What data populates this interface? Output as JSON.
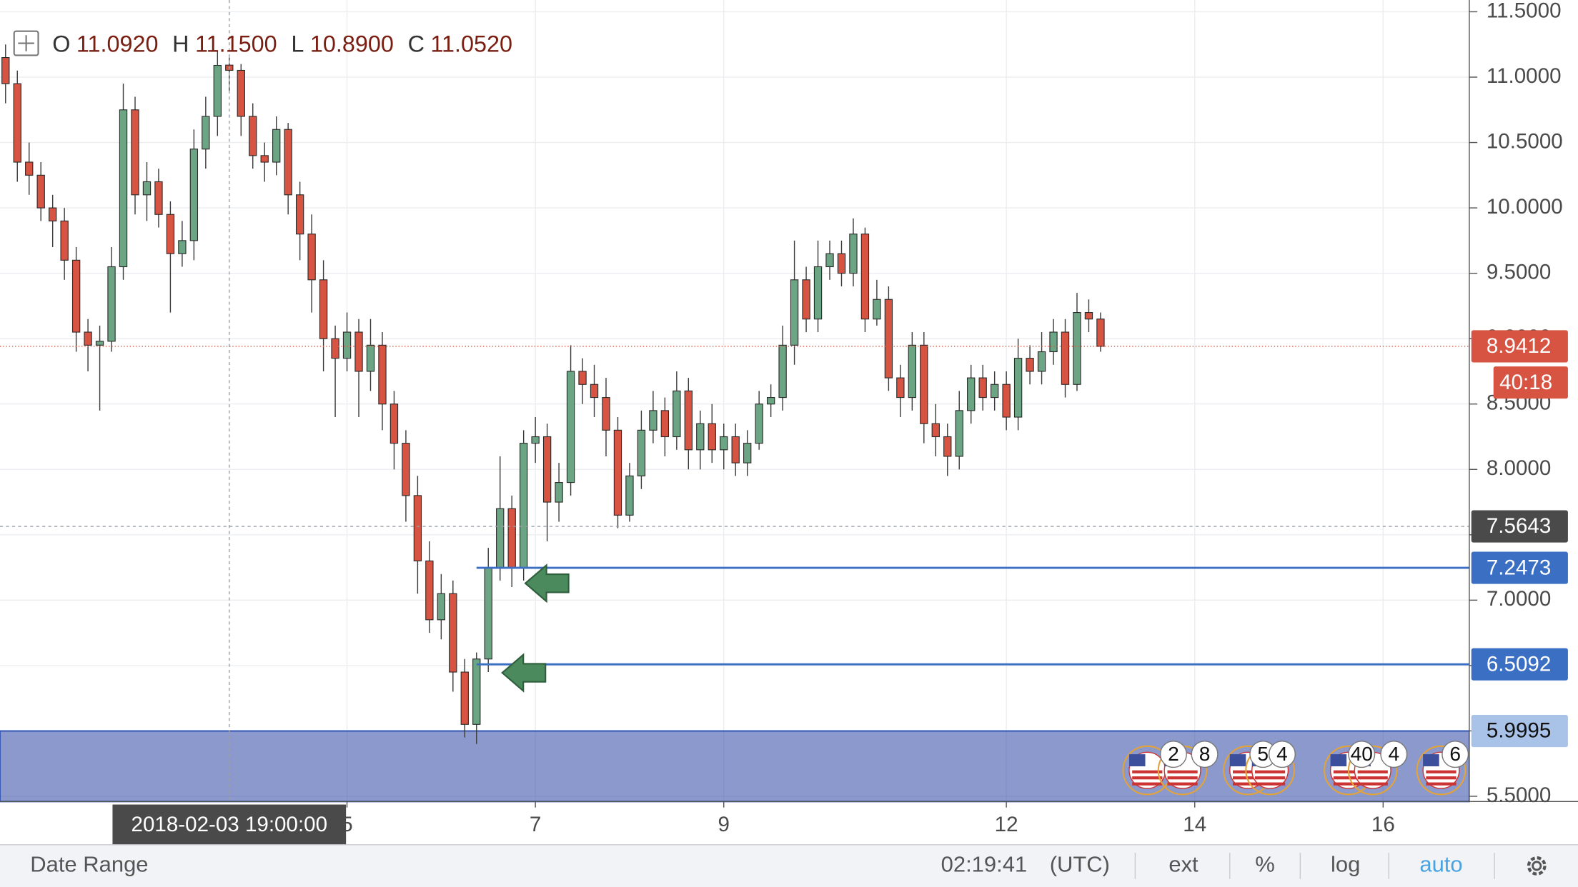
{
  "chart_data": {
    "type": "candlestick",
    "ohlc_legend": [
      {
        "label": "O",
        "value": "11.0920"
      },
      {
        "label": "H",
        "value": "11.1500"
      },
      {
        "label": "L",
        "value": "10.8900"
      },
      {
        "label": "C",
        "value": "11.0520"
      }
    ],
    "x": [
      1.375,
      1.5,
      1.625,
      1.75,
      1.875,
      2.0,
      2.125,
      2.25,
      2.375,
      2.5,
      2.625,
      2.75,
      2.875,
      3.0,
      3.125,
      3.25,
      3.375,
      3.5,
      3.625,
      3.75,
      3.875,
      4.0,
      4.125,
      4.25,
      4.375,
      4.5,
      4.625,
      4.75,
      4.875,
      5.0,
      5.125,
      5.25,
      5.375,
      5.5,
      5.625,
      5.75,
      5.875,
      6.0,
      6.125,
      6.25,
      6.375,
      6.5,
      6.625,
      6.75,
      6.875,
      7.0,
      7.125,
      7.25,
      7.375,
      7.5,
      7.625,
      7.75,
      7.875,
      8.0,
      8.125,
      8.25,
      8.375,
      8.5,
      8.625,
      8.75,
      8.875,
      9.0,
      9.125,
      9.25,
      9.375,
      9.5,
      9.625,
      9.75,
      9.875,
      10.0,
      10.125,
      10.25,
      10.375,
      10.5,
      10.625,
      10.75,
      10.875,
      11.0,
      11.125,
      11.25,
      11.375,
      11.5,
      11.625,
      11.75,
      11.875,
      12.0,
      12.125,
      12.25,
      12.375,
      12.5,
      12.625,
      12.75,
      12.875,
      13.0
    ],
    "open": [
      11.15,
      10.95,
      10.35,
      10.25,
      10.0,
      9.9,
      9.6,
      9.05,
      8.95,
      8.98,
      9.55,
      10.75,
      10.1,
      10.2,
      9.95,
      9.65,
      9.75,
      10.45,
      10.7,
      11.092,
      11.052,
      10.7,
      10.4,
      10.35,
      10.6,
      10.1,
      9.8,
      9.45,
      9.0,
      8.85,
      9.05,
      8.75,
      8.95,
      8.5,
      8.2,
      7.8,
      7.3,
      6.85,
      7.05,
      6.45,
      6.05,
      6.55,
      7.25,
      7.7,
      7.25,
      8.2,
      8.25,
      7.75,
      7.9,
      8.75,
      8.65,
      8.55,
      8.3,
      7.65,
      7.95,
      8.3,
      8.45,
      8.25,
      8.6,
      8.15,
      8.35,
      8.15,
      8.25,
      8.05,
      8.2,
      8.5,
      8.55,
      8.95,
      9.45,
      9.15,
      9.55,
      9.65,
      9.5,
      9.8,
      9.15,
      9.3,
      8.7,
      8.55,
      8.95,
      8.35,
      8.25,
      8.1,
      8.45,
      8.7,
      8.55,
      8.65,
      8.4,
      8.85,
      8.75,
      8.9,
      9.05,
      8.65,
      9.2,
      9.15
    ],
    "high": [
      11.25,
      11.05,
      10.5,
      10.35,
      10.1,
      10.0,
      9.7,
      9.15,
      9.1,
      9.7,
      10.95,
      10.85,
      10.35,
      10.3,
      10.05,
      9.9,
      10.6,
      10.85,
      11.2,
      11.15,
      11.1,
      10.8,
      10.5,
      10.7,
      10.65,
      10.2,
      9.95,
      9.6,
      9.1,
      9.2,
      9.15,
      9.15,
      9.05,
      8.6,
      8.3,
      7.95,
      7.45,
      7.2,
      7.15,
      6.55,
      6.6,
      7.4,
      8.1,
      7.8,
      8.3,
      8.4,
      8.35,
      8.05,
      8.95,
      8.85,
      8.8,
      8.7,
      8.4,
      8.05,
      8.45,
      8.6,
      8.55,
      8.75,
      8.7,
      8.45,
      8.5,
      8.35,
      8.35,
      8.3,
      8.6,
      8.65,
      9.1,
      9.75,
      9.55,
      9.75,
      9.75,
      9.75,
      9.92,
      9.85,
      9.45,
      9.4,
      8.8,
      9.05,
      9.05,
      8.5,
      8.35,
      8.6,
      8.8,
      8.8,
      8.75,
      8.75,
      9.0,
      8.95,
      9.05,
      9.15,
      9.15,
      9.35,
      9.3,
      9.2
    ],
    "low": [
      10.8,
      10.2,
      10.1,
      9.9,
      9.7,
      9.45,
      8.9,
      8.75,
      8.45,
      8.9,
      9.45,
      9.95,
      9.9,
      9.85,
      9.2,
      9.55,
      9.6,
      10.3,
      10.55,
      10.89,
      10.55,
      10.3,
      10.2,
      10.25,
      9.95,
      9.6,
      9.2,
      8.75,
      8.4,
      8.75,
      8.4,
      8.6,
      8.3,
      8.0,
      7.6,
      7.05,
      6.75,
      6.7,
      6.3,
      5.95,
      5.9,
      6.45,
      7.15,
      7.1,
      7.15,
      8.05,
      7.45,
      7.6,
      7.8,
      8.5,
      8.4,
      8.1,
      7.55,
      7.6,
      7.85,
      8.2,
      8.1,
      8.15,
      8.0,
      8.0,
      8.05,
      8.0,
      7.95,
      7.95,
      8.15,
      8.4,
      8.45,
      8.8,
      9.05,
      9.05,
      9.45,
      9.4,
      9.4,
      9.05,
      9.1,
      8.6,
      8.4,
      8.45,
      8.2,
      8.1,
      7.95,
      8.0,
      8.35,
      8.45,
      8.45,
      8.3,
      8.3,
      8.65,
      8.65,
      8.8,
      8.55,
      8.6,
      9.05,
      8.9
    ],
    "close": [
      10.95,
      10.35,
      10.25,
      10.0,
      9.9,
      9.6,
      9.05,
      8.95,
      8.98,
      9.55,
      10.75,
      10.1,
      10.2,
      9.95,
      9.65,
      9.75,
      10.45,
      10.7,
      11.09,
      11.052,
      10.7,
      10.4,
      10.35,
      10.6,
      10.1,
      9.8,
      9.45,
      9.0,
      8.85,
      9.05,
      8.75,
      8.95,
      8.5,
      8.2,
      7.8,
      7.3,
      6.85,
      7.05,
      6.45,
      6.05,
      6.55,
      7.25,
      7.7,
      7.25,
      8.2,
      8.25,
      7.75,
      7.9,
      8.75,
      8.65,
      8.55,
      8.3,
      7.65,
      7.95,
      8.3,
      8.45,
      8.25,
      8.6,
      8.15,
      8.35,
      8.15,
      8.25,
      8.05,
      8.2,
      8.5,
      8.55,
      8.95,
      9.45,
      9.15,
      9.55,
      9.65,
      9.5,
      9.8,
      9.15,
      9.3,
      8.7,
      8.55,
      8.95,
      8.35,
      8.25,
      8.1,
      8.45,
      8.7,
      8.55,
      8.65,
      8.4,
      8.85,
      8.75,
      8.9,
      9.05,
      8.65,
      9.2,
      9.15,
      8.9412
    ],
    "up_color": "#6ba583",
    "down_color": "#d75442",
    "xlim": [
      1.316,
      16.915
    ],
    "ylim": [
      5.46,
      11.59
    ],
    "xticks": [
      5,
      7,
      9,
      12,
      14,
      16
    ],
    "yticks": [
      {
        "value": 5.5,
        "label": "5.5000"
      },
      {
        "value": 6.0,
        "label": "6.0000"
      },
      {
        "value": 6.5,
        "label": "6.5000"
      },
      {
        "value": 7.0,
        "label": "7.0000"
      },
      {
        "value": 7.5,
        "label": "7.5000"
      },
      {
        "value": 8.0,
        "label": "8.0000"
      },
      {
        "value": 8.5,
        "label": "8.5000"
      },
      {
        "value": 9.0,
        "label": "9.0000"
      },
      {
        "value": 9.5,
        "label": "9.5000"
      },
      {
        "value": 10.0,
        "label": "10.0000"
      },
      {
        "value": 10.5,
        "label": "10.5000"
      },
      {
        "value": 11.0,
        "label": "11.0000"
      },
      {
        "value": 11.5,
        "label": "11.5000"
      }
    ],
    "grid": true,
    "last_price": 8.9412,
    "countdown": "40:18",
    "crosshair": {
      "x_label": "2018-02-03 19:00:00",
      "y": 7.5643
    },
    "price_lines": [
      7.2473,
      6.5092
    ],
    "zone_top": 5.9995,
    "event_badges": [
      "2",
      "8",
      "5",
      "4",
      "40",
      "4",
      "6"
    ]
  },
  "toolbar": {
    "left": "Date Range",
    "time": "02:19:41",
    "timezone": "(UTC)",
    "buttons": [
      "ext",
      "%",
      "log",
      "auto"
    ]
  }
}
